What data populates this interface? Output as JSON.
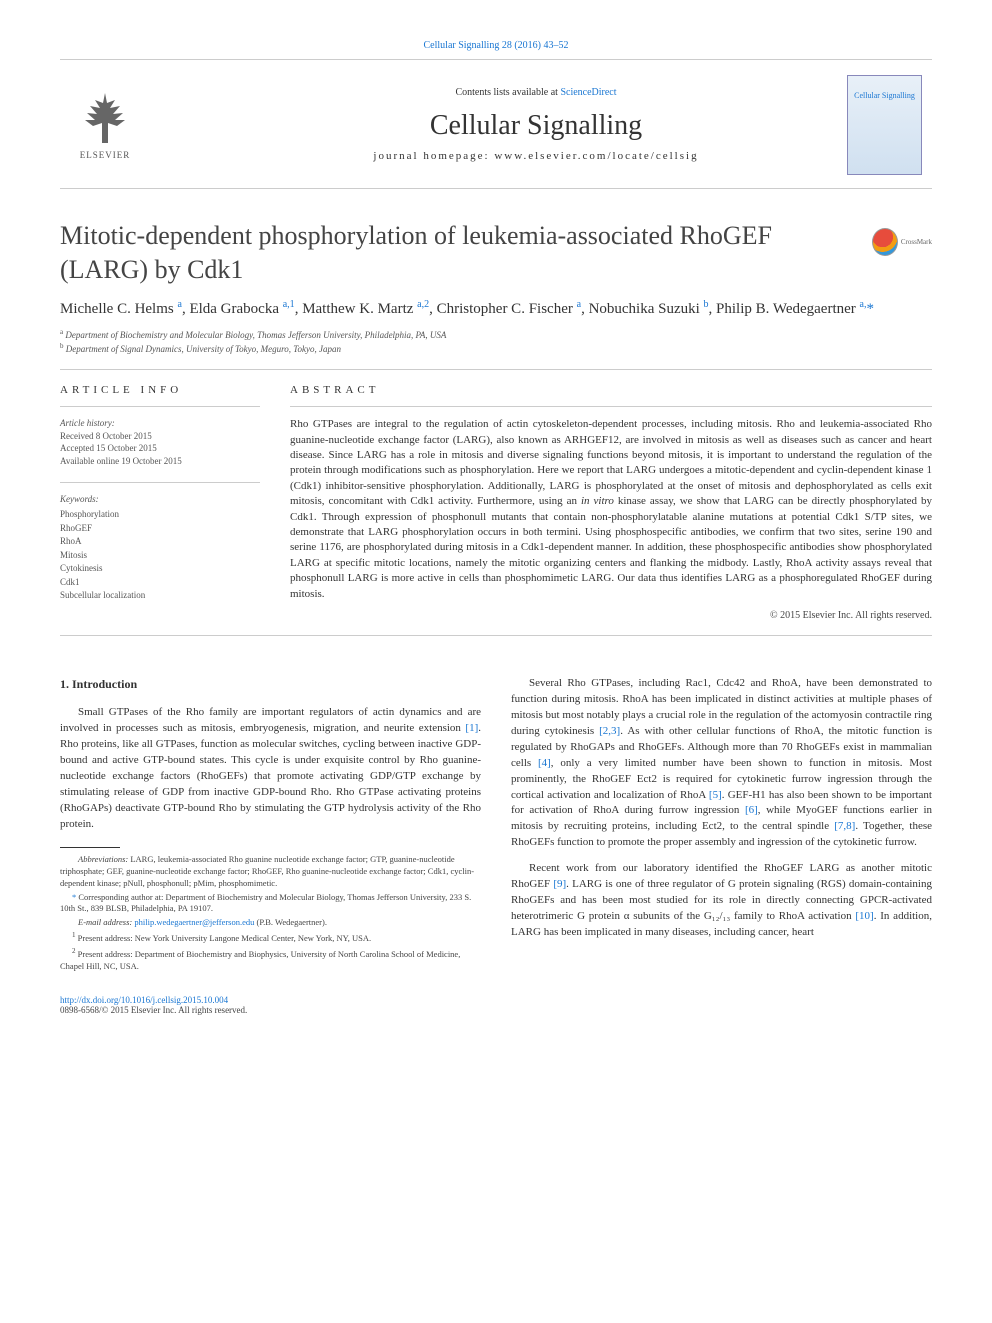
{
  "top_link": "Cellular Signalling 28 (2016) 43–52",
  "header": {
    "contents_prefix": "Contents lists available at ",
    "contents_link": "ScienceDirect",
    "journal_name": "Cellular Signalling",
    "homepage_prefix": "journal homepage: ",
    "homepage": "www.elsevier.com/locate/cellsig",
    "elsevier": "ELSEVIER",
    "cover_title": "Cellular Signalling"
  },
  "crossmark": "CrossMark",
  "title": "Mitotic-dependent phosphorylation of leukemia-associated RhoGEF (LARG) by Cdk1",
  "authors_html": "Michelle C. Helms <sup>a</sup>, Elda Grabocka <sup>a,1</sup>, Matthew K. Martz <sup>a,2</sup>, Christopher C. Fischer <sup>a</sup>, Nobuchika Suzuki <sup>b</sup>, Philip B. Wedegaertner <sup>a,</sup><span class='star'>*</span>",
  "affiliations": {
    "a": "Department of Biochemistry and Molecular Biology, Thomas Jefferson University, Philadelphia, PA, USA",
    "b": "Department of Signal Dynamics, University of Tokyo, Meguro, Tokyo, Japan"
  },
  "article_info_label": "ARTICLE INFO",
  "abstract_label": "ABSTRACT",
  "history": {
    "label": "Article history:",
    "received": "Received 8 October 2015",
    "accepted": "Accepted 15 October 2015",
    "online": "Available online 19 October 2015"
  },
  "keywords": {
    "label": "Keywords:",
    "items": [
      "Phosphorylation",
      "RhoGEF",
      "RhoA",
      "Mitosis",
      "Cytokinesis",
      "Cdk1",
      "Subcellular localization"
    ]
  },
  "abstract": "Rho GTPases are integral to the regulation of actin cytoskeleton-dependent processes, including mitosis. Rho and leukemia-associated Rho guanine-nucleotide exchange factor (LARG), also known as ARHGEF12, are involved in mitosis as well as diseases such as cancer and heart disease. Since LARG has a role in mitosis and diverse signaling functions beyond mitosis, it is important to understand the regulation of the protein through modifications such as phosphorylation. Here we report that LARG undergoes a mitotic-dependent and cyclin-dependent kinase 1 (Cdk1) inhibitor-sensitive phosphorylation. Additionally, LARG is phosphorylated at the onset of mitosis and dephosphorylated as cells exit mitosis, concomitant with Cdk1 activity. Furthermore, using an in vitro kinase assay, we show that LARG can be directly phosphorylated by Cdk1. Through expression of phosphonull mutants that contain non-phosphorylatable alanine mutations at potential Cdk1 S/TP sites, we demonstrate that LARG phosphorylation occurs in both termini. Using phosphospecific antibodies, we confirm that two sites, serine 190 and serine 1176, are phosphorylated during mitosis in a Cdk1-dependent manner. In addition, these phosphospecific antibodies show phosphorylated LARG at specific mitotic locations, namely the mitotic organizing centers and flanking the midbody. Lastly, RhoA activity assays reveal that phosphonull LARG is more active in cells than phosphomimetic LARG. Our data thus identifies LARG as a phosphoregulated RhoGEF during mitosis.",
  "copyright": "© 2015 Elsevier Inc. All rights reserved.",
  "intro_heading": "1. Introduction",
  "col1_p1": "Small GTPases of the Rho family are important regulators of actin dynamics and are involved in processes such as mitosis, embryogenesis, migration, and neurite extension [1]. Rho proteins, like all GTPases, function as molecular switches, cycling between inactive GDP-bound and active GTP-bound states. This cycle is under exquisite control by Rho guanine-nucleotide exchange factors (RhoGEFs) that promote activating GDP/GTP exchange by stimulating release of GDP from inactive GDP-bound Rho. Rho GTPase activating proteins (RhoGAPs) deactivate GTP-bound Rho by stimulating the GTP hydrolysis activity of the Rho protein.",
  "col2_p1": "Several Rho GTPases, including Rac1, Cdc42 and RhoA, have been demonstrated to function during mitosis. RhoA has been implicated in distinct activities at multiple phases of mitosis but most notably plays a crucial role in the regulation of the actomyosin contractile ring during cytokinesis [2,3]. As with other cellular functions of RhoA, the mitotic function is regulated by RhoGAPs and RhoGEFs. Although more than 70 RhoGEFs exist in mammalian cells [4], only a very limited number have been shown to function in mitosis. Most prominently, the RhoGEF Ect2 is required for cytokinetic furrow ingression through the cortical activation and localization of RhoA [5]. GEF-H1 has also been shown to be important for activation of RhoA during furrow ingression [6], while MyoGEF functions earlier in mitosis by recruiting proteins, including Ect2, to the central spindle [7,8]. Together, these RhoGEFs function to promote the proper assembly and ingression of the cytokinetic furrow.",
  "col2_p2": "Recent work from our laboratory identified the RhoGEF LARG as another mitotic RhoGEF [9]. LARG is one of three regulator of G protein signaling (RGS) domain-containing RhoGEFs and has been most studied for its role in directly connecting GPCR-activated heterotrimeric G protein α subunits of the G₁₂/₁₃ family to RhoA activation [10]. In addition, LARG has been implicated in many diseases, including cancer, heart",
  "footnotes": {
    "abbrev_label": "Abbreviations:",
    "abbrev": "LARG, leukemia-associated Rho guanine nucleotide exchange factor; GTP, guanine-nucleotide triphosphate; GEF, guanine-nucleotide exchange factor; RhoGEF, Rho guanine-nucleotide exchange factor; Cdk1, cyclin-dependent kinase; pNull, phosphonull; pMim, phosphomimetic.",
    "corresp_marker": "*",
    "corresp": "Corresponding author at: Department of Biochemistry and Molecular Biology, Thomas Jefferson University, 233 S. 10th St., 839 BLSB, Philadelphia, PA 19107.",
    "email_label": "E-mail address:",
    "email": "philip.wedegaertner@jefferson.edu",
    "email_suffix": "(P.B. Wedegaertner).",
    "note1": "Present address: New York University Langone Medical Center, New York, NY, USA.",
    "note2": "Present address: Department of Biochemistry and Biophysics, University of North Carolina School of Medicine, Chapel Hill, NC, USA."
  },
  "footer": {
    "doi": "http://dx.doi.org/10.1016/j.cellsig.2015.10.004",
    "issn": "0898-6568/© 2015 Elsevier Inc. All rights reserved."
  },
  "colors": {
    "link": "#1976d2",
    "text": "#333333",
    "muted": "#555555",
    "border": "#cccccc"
  }
}
